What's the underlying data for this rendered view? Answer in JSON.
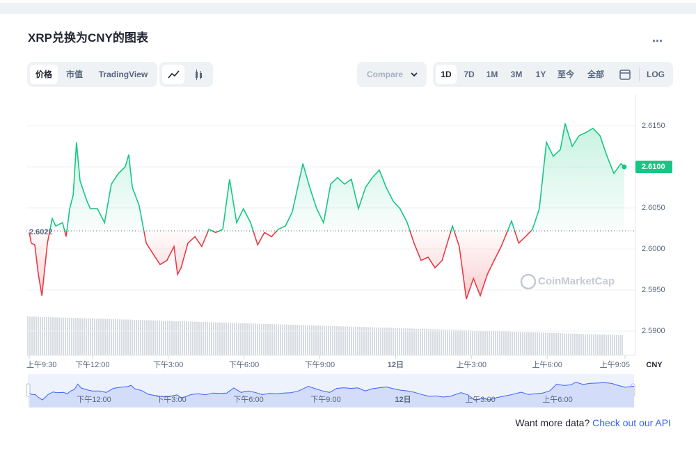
{
  "ui": {
    "title": "XRP兑换为CNY的图表",
    "menu": "...",
    "tabs": [
      "价格",
      "市值",
      "TradingView"
    ],
    "compare": "Compare",
    "ranges": [
      "1D",
      "7D",
      "1M",
      "3M",
      "1Y",
      "至今",
      "全部"
    ],
    "log": "LOG",
    "currency": "CNY",
    "watermark": "CoinMarketCap",
    "footer_text": "Want more data?",
    "footer_link": "Check out our API"
  },
  "chart_data": {
    "type": "line",
    "x": [
      0,
      0.08,
      0.22,
      0.36,
      0.5,
      0.72,
      0.91,
      1.05,
      1.32,
      1.46,
      1.6,
      1.74,
      1.87,
      2.01,
      2.29,
      2.42,
      2.7,
      2.98,
      3.25,
      3.53,
      3.8,
      3.94,
      4.08,
      4.35,
      4.63,
      4.9,
      5.18,
      5.45,
      5.73,
      5.87,
      6.01,
      6.28,
      6.56,
      6.83,
      7.11,
      7.38,
      7.66,
      7.93,
      8.21,
      8.48,
      8.76,
      9.04,
      9.31,
      9.59,
      9.86,
      10.14,
      10.41,
      10.83,
      11.1,
      11.38,
      11.65,
      11.93,
      12.2,
      12.48,
      12.75,
      13.03,
      13.31,
      13.58,
      13.86,
      14.13,
      14.41,
      14.68,
      14.96,
      15.23,
      15.51,
      15.79,
      16.06,
      16.34,
      16.75,
      17.02,
      17.3,
      17.58,
      17.85,
      18.13,
      18.4,
      18.68,
      19.09,
      19.37,
      19.64,
      19.92,
      20.19,
      20.47,
      20.74,
      21.02,
      21.21,
      21.49,
      21.76,
      22.04,
      22.31,
      22.59,
      22.87,
      23.14,
      23.42,
      23.55
    ],
    "series": [
      {
        "name": "XRP/CNY",
        "color": "#16c784",
        "color_below": "#ea3943",
        "values": [
          2.602,
          2.6007,
          2.6005,
          2.5969,
          2.5943,
          2.6007,
          2.6037,
          2.6028,
          2.6032,
          2.6015,
          2.6049,
          2.6066,
          2.613,
          2.6083,
          2.6058,
          2.6049,
          2.6049,
          2.6032,
          2.6079,
          2.6092,
          2.61,
          2.6115,
          2.6075,
          2.6053,
          2.6007,
          2.5994,
          2.5981,
          2.5986,
          2.6003,
          2.5969,
          2.5977,
          2.6007,
          2.6015,
          2.6003,
          2.6024,
          2.602,
          2.6024,
          2.6085,
          2.6032,
          2.6049,
          2.6032,
          2.6005,
          2.602,
          2.6015,
          2.6024,
          2.6028,
          2.6045,
          2.6104,
          2.6075,
          2.6049,
          2.6032,
          2.6079,
          2.6087,
          2.6079,
          2.6085,
          2.6049,
          2.6075,
          2.6087,
          2.6096,
          2.6075,
          2.6058,
          2.6049,
          2.6032,
          2.6007,
          2.5986,
          2.599,
          2.5977,
          2.5986,
          2.6028,
          2.6003,
          2.5939,
          2.5964,
          2.5943,
          2.5969,
          2.5986,
          2.6003,
          2.6034,
          2.6007,
          2.6015,
          2.6024,
          2.6049,
          2.613,
          2.6113,
          2.6121,
          2.6153,
          2.6125,
          2.6138,
          2.6142,
          2.6147,
          2.6138,
          2.6113,
          2.6092,
          2.6104,
          2.61
        ]
      }
    ],
    "reference": 2.6022,
    "current_price": {
      "value": 2.61,
      "label": "2.6100"
    },
    "xlim": [
      0,
      23.58
    ],
    "xticks": [
      {
        "value": 0,
        "label": "上午9:30"
      },
      {
        "value": 2.5,
        "label": "下午12:00"
      },
      {
        "value": 5.5,
        "label": "下午3:00"
      },
      {
        "value": 8.5,
        "label": "下午6:00"
      },
      {
        "value": 11.5,
        "label": "下午9:00"
      },
      {
        "value": 14.5,
        "label": "12日"
      },
      {
        "value": 17.5,
        "label": "上午3:00"
      },
      {
        "value": 20.5,
        "label": "上午6:00"
      },
      {
        "value": 23.58,
        "label": "上午9:05"
      }
    ],
    "navigator_ticks": [
      1,
      2,
      3,
      4,
      5,
      6,
      7
    ],
    "ylim": [
      2.587,
      2.619
    ],
    "yticks": [
      {
        "value": 2.59,
        "label": "2.5900"
      },
      {
        "value": 2.595,
        "label": "2.5950"
      },
      {
        "value": 2.6,
        "label": "2.6000"
      },
      {
        "value": 2.605,
        "label": "2.6050"
      },
      {
        "value": 2.61,
        "label": "2.6100"
      },
      {
        "value": 2.615,
        "label": "2.6150"
      }
    ],
    "grid": true
  }
}
